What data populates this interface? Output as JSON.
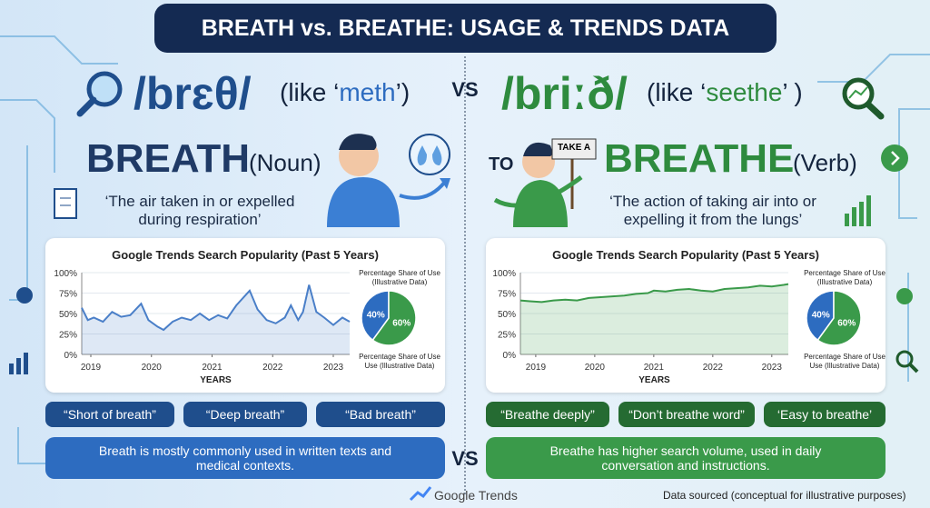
{
  "title": "BREATH vs. BREATHE: USAGE & TRENDS DATA",
  "vs_top": "VS",
  "vs_bottom": "VS",
  "left": {
    "ipa": "/brɛθ/",
    "like_open": "(like ‘",
    "like_word": "meth",
    "like_close": "’)",
    "word": "BREATH",
    "pos": "(Noun)",
    "definition": "‘The air taken in or expelled during respiration’",
    "phrases": [
      "“Short of breath”",
      "“Deep breath”",
      "“Bad breath”"
    ],
    "summary": "Breath is mostly commonly used in written texts and medical contexts."
  },
  "right": {
    "ipa": "/briːð/",
    "like_open": "(like ‘",
    "like_word": "seethe",
    "like_close": "’ )",
    "to": "TO",
    "sign": "TAKE A",
    "word": "BREATHE",
    "pos": "(Verb)",
    "definition": "‘The action of taking air into or expelling it from the lungs’",
    "phrases": [
      "“Breathe deeply”",
      "“Don’t breathe word”",
      "‘Easy to breathe’"
    ],
    "summary": "Breathe has higher search volume, used in daily conversation and instructions."
  },
  "chart_data": [
    {
      "type": "line",
      "title": "Google Trends Search Popularity (Past 5 Years)",
      "xlabel": "YEARS",
      "x": [
        2018.85,
        2018.95,
        2019.05,
        2019.2,
        2019.35,
        2019.5,
        2019.65,
        2019.83,
        2019.95,
        2020.1,
        2020.2,
        2020.35,
        2020.5,
        2020.65,
        2020.8,
        2020.95,
        2021.1,
        2021.25,
        2021.4,
        2021.62,
        2021.75,
        2021.9,
        2022.05,
        2022.2,
        2022.3,
        2022.42,
        2022.5,
        2022.6,
        2022.72,
        2022.85,
        2023.0,
        2023.15,
        2023.27
      ],
      "values": [
        57,
        42,
        45,
        40,
        52,
        46,
        48,
        62,
        42,
        34,
        30,
        40,
        45,
        42,
        50,
        42,
        48,
        44,
        60,
        78,
        55,
        42,
        38,
        45,
        60,
        42,
        52,
        85,
        52,
        45,
        36,
        45,
        40
      ],
      "color": "#4a7fc8",
      "grid": true,
      "xlim": [
        2018.85,
        2023.27
      ],
      "xticks": [
        2019,
        2020,
        2021,
        2022,
        2023
      ],
      "ylim": [
        0,
        100
      ],
      "yticks": [
        {
          "value": 0,
          "label": "0%"
        },
        {
          "value": 25,
          "label": "25%"
        },
        {
          "value": 50,
          "label": "50%"
        },
        {
          "value": 75,
          "label": "75%"
        },
        {
          "value": 100,
          "label": "100%"
        }
      ]
    },
    {
      "type": "pie",
      "title": "Percentage Share of Use (Illustrative Data)",
      "note": "Percentage Share of Use Use (Illustrative Data)",
      "values": [
        40,
        60
      ],
      "value_labels": [
        "40%",
        "60%"
      ],
      "colors": [
        "#2d6cc0",
        "#3a9a4a"
      ]
    },
    {
      "type": "line",
      "title": "Google Trends Search Popularity (Past 5 Years)",
      "xlabel": "YEARS",
      "x": [
        2018.74,
        2018.9,
        2019.1,
        2019.3,
        2019.5,
        2019.7,
        2019.9,
        2020.1,
        2020.3,
        2020.5,
        2020.7,
        2020.9,
        2021.0,
        2021.2,
        2021.4,
        2021.6,
        2021.8,
        2022.0,
        2022.2,
        2022.4,
        2022.6,
        2022.8,
        2023.0,
        2023.2,
        2023.28
      ],
      "values": [
        66,
        65,
        64,
        66,
        67,
        66,
        69,
        70,
        71,
        72,
        74,
        75,
        78,
        77,
        79,
        80,
        78,
        77,
        80,
        81,
        82,
        84,
        83,
        85,
        86
      ],
      "color": "#3a9a4a",
      "grid": true,
      "xlim": [
        2018.74,
        2023.28
      ],
      "xticks": [
        2019,
        2020,
        2021,
        2022,
        2023
      ],
      "ylim": [
        0,
        100
      ],
      "yticks": [
        {
          "value": 0,
          "label": "0%"
        },
        {
          "value": 25,
          "label": "25%"
        },
        {
          "value": 50,
          "label": "50%"
        },
        {
          "value": 75,
          "label": "75%"
        },
        {
          "value": 100,
          "label": "100%"
        }
      ]
    },
    {
      "type": "pie",
      "title": "Percentage Share of Use (Illustrative Data)",
      "note": "Percentage Share of Use Use (Illustrative Data)",
      "values": [
        40,
        60
      ],
      "value_labels": [
        "40%",
        "60%"
      ],
      "colors": [
        "#2d6cc0",
        "#3a9a4a"
      ]
    }
  ],
  "footer": {
    "brand": "Google Trends",
    "source": "Data sourced (conceptual for illustrative purposes)"
  }
}
